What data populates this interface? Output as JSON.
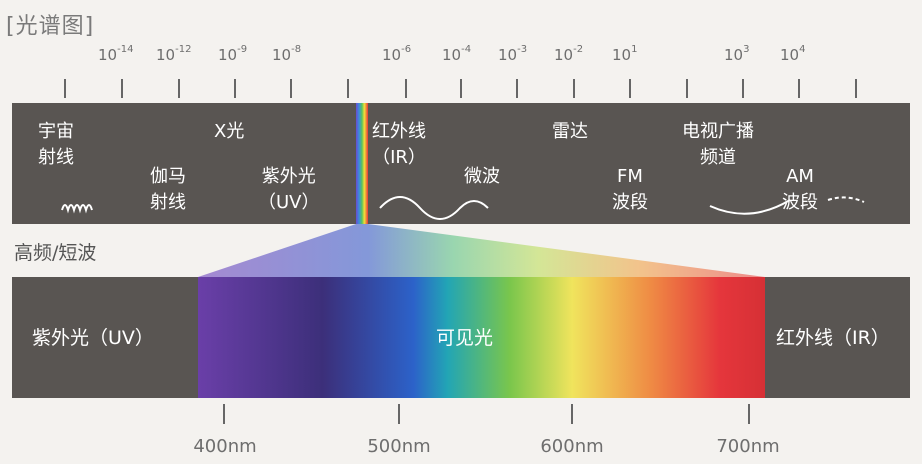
{
  "title": "[光谱图]",
  "scale_exponents": [
    {
      "base": "10",
      "exp": "-14"
    },
    {
      "base": "10",
      "exp": "-12"
    },
    {
      "base": "10",
      "exp": "-9"
    },
    {
      "base": "10",
      "exp": "-8"
    },
    {
      "base": "10",
      "exp": "-6"
    },
    {
      "base": "10",
      "exp": "-4"
    },
    {
      "base": "10",
      "exp": "-3"
    },
    {
      "base": "10",
      "exp": "-2"
    },
    {
      "base": "10",
      "exp": "1"
    },
    {
      "base": "10",
      "exp": "3"
    },
    {
      "base": "10",
      "exp": "4"
    }
  ],
  "top_band": {
    "cosmic_line1": "宇宙",
    "cosmic_line2": "射线",
    "xray": "X光",
    "gamma_line1": "伽马",
    "gamma_line2": "射线",
    "uv_line1": "紫外光",
    "uv_line2": "（UV）",
    "ir_line1": "红外线",
    "ir_line2": "（IR）",
    "microwave": "微波",
    "radar": "雷达",
    "tv_line1": "电视广播",
    "tv_line2": "频道",
    "fm_line1": "FM",
    "fm_line2": "波段",
    "am_line1": "AM",
    "am_line2": "波段"
  },
  "mid_label": "高频/短波",
  "bottom_band": {
    "uv": "紫外光（UV）",
    "visible": "可见光",
    "ir": "红外线（IR）"
  },
  "wavelengths": [
    "400nm",
    "500nm",
    "600nm",
    "700nm"
  ]
}
